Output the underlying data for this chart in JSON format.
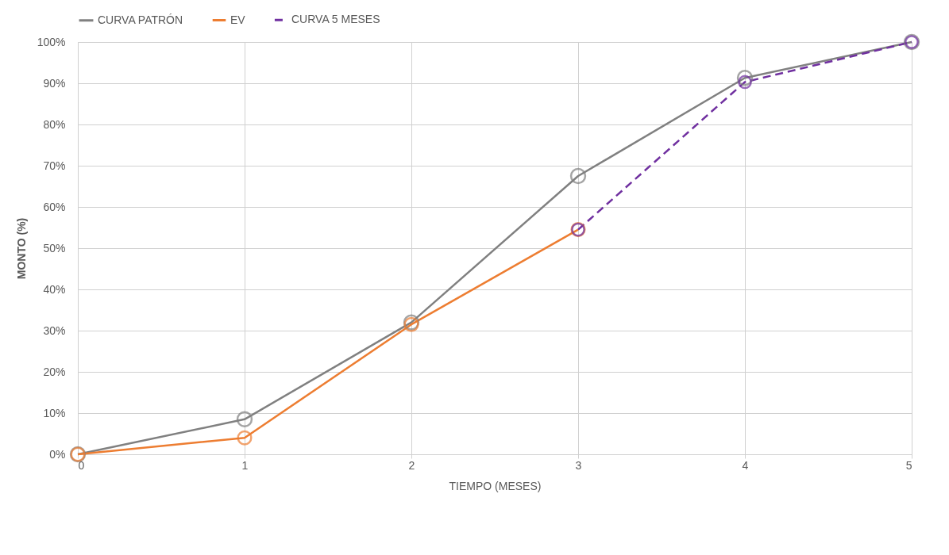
{
  "chart_data": {
    "type": "line",
    "xlabel": "TIEMPO (MESES)",
    "ylabel": "MONTO (%)",
    "xlim": [
      0,
      5
    ],
    "xticks": [
      0,
      1,
      2,
      3,
      4,
      5
    ],
    "ylim": [
      0,
      100
    ],
    "yticks": [
      {
        "value": 0,
        "label": "0%"
      },
      {
        "value": 10,
        "label": "10%"
      },
      {
        "value": 20,
        "label": "20%"
      },
      {
        "value": 30,
        "label": "30%"
      },
      {
        "value": 40,
        "label": "40%"
      },
      {
        "value": 50,
        "label": "50%"
      },
      {
        "value": 60,
        "label": "60%"
      },
      {
        "value": 70,
        "label": "70%"
      },
      {
        "value": 80,
        "label": "80%"
      },
      {
        "value": 90,
        "label": "90%"
      },
      {
        "value": 100,
        "label": "100%"
      }
    ],
    "grid": true,
    "legend": "top",
    "marker": "circle",
    "series": [
      {
        "name": "CURVA PATRÓN",
        "color": "#808080",
        "line_style": "solid",
        "x": [
          0,
          1,
          2,
          3,
          4,
          5
        ],
        "values": [
          0,
          8.5,
          32,
          67.5,
          91.3,
          100
        ]
      },
      {
        "name": "EV",
        "color": "#ed7d31",
        "line_style": "solid",
        "x": [
          0,
          1,
          2,
          3
        ],
        "values": [
          0,
          4,
          31.5,
          54.5
        ]
      },
      {
        "name": "CURVA 5 MESES",
        "color": "#7030a0",
        "line_style": "dashed",
        "x": [
          3,
          4,
          5
        ],
        "values": [
          54.5,
          90.3,
          100
        ]
      }
    ]
  }
}
